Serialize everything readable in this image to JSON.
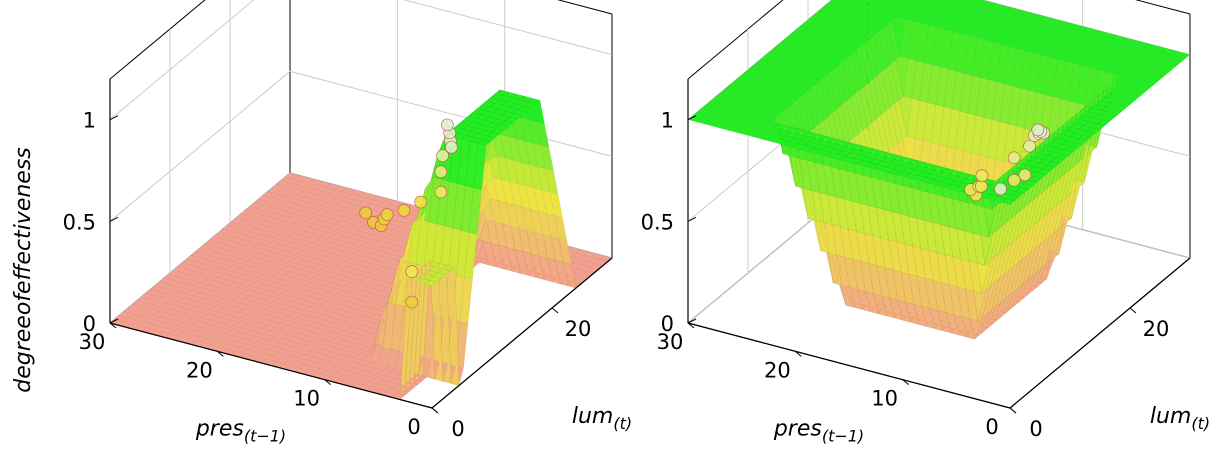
{
  "figure": {
    "zlabel": "degreeofeffectiveness"
  },
  "chart_data": [
    {
      "type": "surface3d",
      "xlabel_main": "pres",
      "xlabel_sub": "(t−1)",
      "ylabel_main": "lum",
      "ylabel_sub": "(t)",
      "zlabel": "degreeofeffectiveness",
      "xlim": [
        0,
        30
      ],
      "ylim": [
        0,
        30
      ],
      "zlim": [
        0,
        1.2
      ],
      "x_ticks": [
        "0",
        "10",
        "20",
        "30"
      ],
      "y_ticks": [
        "0",
        "20"
      ],
      "z_ticks": [
        "0",
        "0.5",
        "1"
      ],
      "grid": true,
      "low_color": "#f4a08f",
      "high_color": "#22ee22",
      "points": [
        {
          "x": 14,
          "y": 14,
          "z": 0.42
        },
        {
          "x": 13,
          "y": 13.5,
          "z": 0.4
        },
        {
          "x": 12,
          "y": 13,
          "z": 0.41
        },
        {
          "x": 12,
          "y": 13.5,
          "z": 0.43
        },
        {
          "x": 12,
          "y": 14,
          "z": 0.44
        },
        {
          "x": 11,
          "y": 15,
          "z": 0.45
        },
        {
          "x": 10,
          "y": 16,
          "z": 0.48
        },
        {
          "x": 7,
          "y": 14,
          "z": 0.62
        },
        {
          "x": 7,
          "y": 14,
          "z": 0.72
        },
        {
          "x": 6,
          "y": 12.5,
          "z": 0.85
        },
        {
          "x": 5,
          "y": 12,
          "z": 0.95
        },
        {
          "x": 3.5,
          "y": 9.5,
          "z": 1.0
        },
        {
          "x": 4.5,
          "y": 11,
          "z": 1.02
        },
        {
          "x": 5,
          "y": 11.5,
          "z": 1.04
        },
        {
          "x": 3,
          "y": 2,
          "z": 0.58
        },
        {
          "x": 3,
          "y": 2,
          "z": 0.43
        }
      ]
    },
    {
      "type": "surface3d",
      "xlabel_main": "pres",
      "xlabel_sub": "(t−1)",
      "ylabel_main": "lum",
      "ylabel_sub": "(t)",
      "zlabel": "",
      "xlim": [
        0,
        30
      ],
      "ylim": [
        0,
        30
      ],
      "zlim": [
        0,
        1.2
      ],
      "x_ticks": [
        "0",
        "10",
        "20",
        "30"
      ],
      "y_ticks": [
        "0",
        "20"
      ],
      "z_ticks": [
        "0",
        "0.5",
        "1"
      ],
      "grid": true,
      "low_color": "#f4a08f",
      "high_color": "#22ee22",
      "points": [
        {
          "x": 11,
          "y": 14,
          "z": 0.55
        },
        {
          "x": 11.5,
          "y": 14,
          "z": 0.57
        },
        {
          "x": 11,
          "y": 14.5,
          "z": 0.58
        },
        {
          "x": 10.5,
          "y": 14,
          "z": 0.6
        },
        {
          "x": 11,
          "y": 15,
          "z": 0.62
        },
        {
          "x": 8,
          "y": 15,
          "z": 0.64
        },
        {
          "x": 7,
          "y": 15,
          "z": 0.68
        },
        {
          "x": 8,
          "y": 15,
          "z": 0.75
        },
        {
          "x": 6,
          "y": 14,
          "z": 0.86
        },
        {
          "x": 5,
          "y": 13,
          "z": 0.95
        },
        {
          "x": 4,
          "y": 12,
          "z": 1.0
        },
        {
          "x": 3,
          "y": 11,
          "z": 1.04
        },
        {
          "x": 3,
          "y": 10.5,
          "z": 1.06
        },
        {
          "x": 3,
          "y": 10,
          "z": 1.08
        },
        {
          "x": 2,
          "y": 2,
          "z": 1.0
        }
      ]
    }
  ]
}
